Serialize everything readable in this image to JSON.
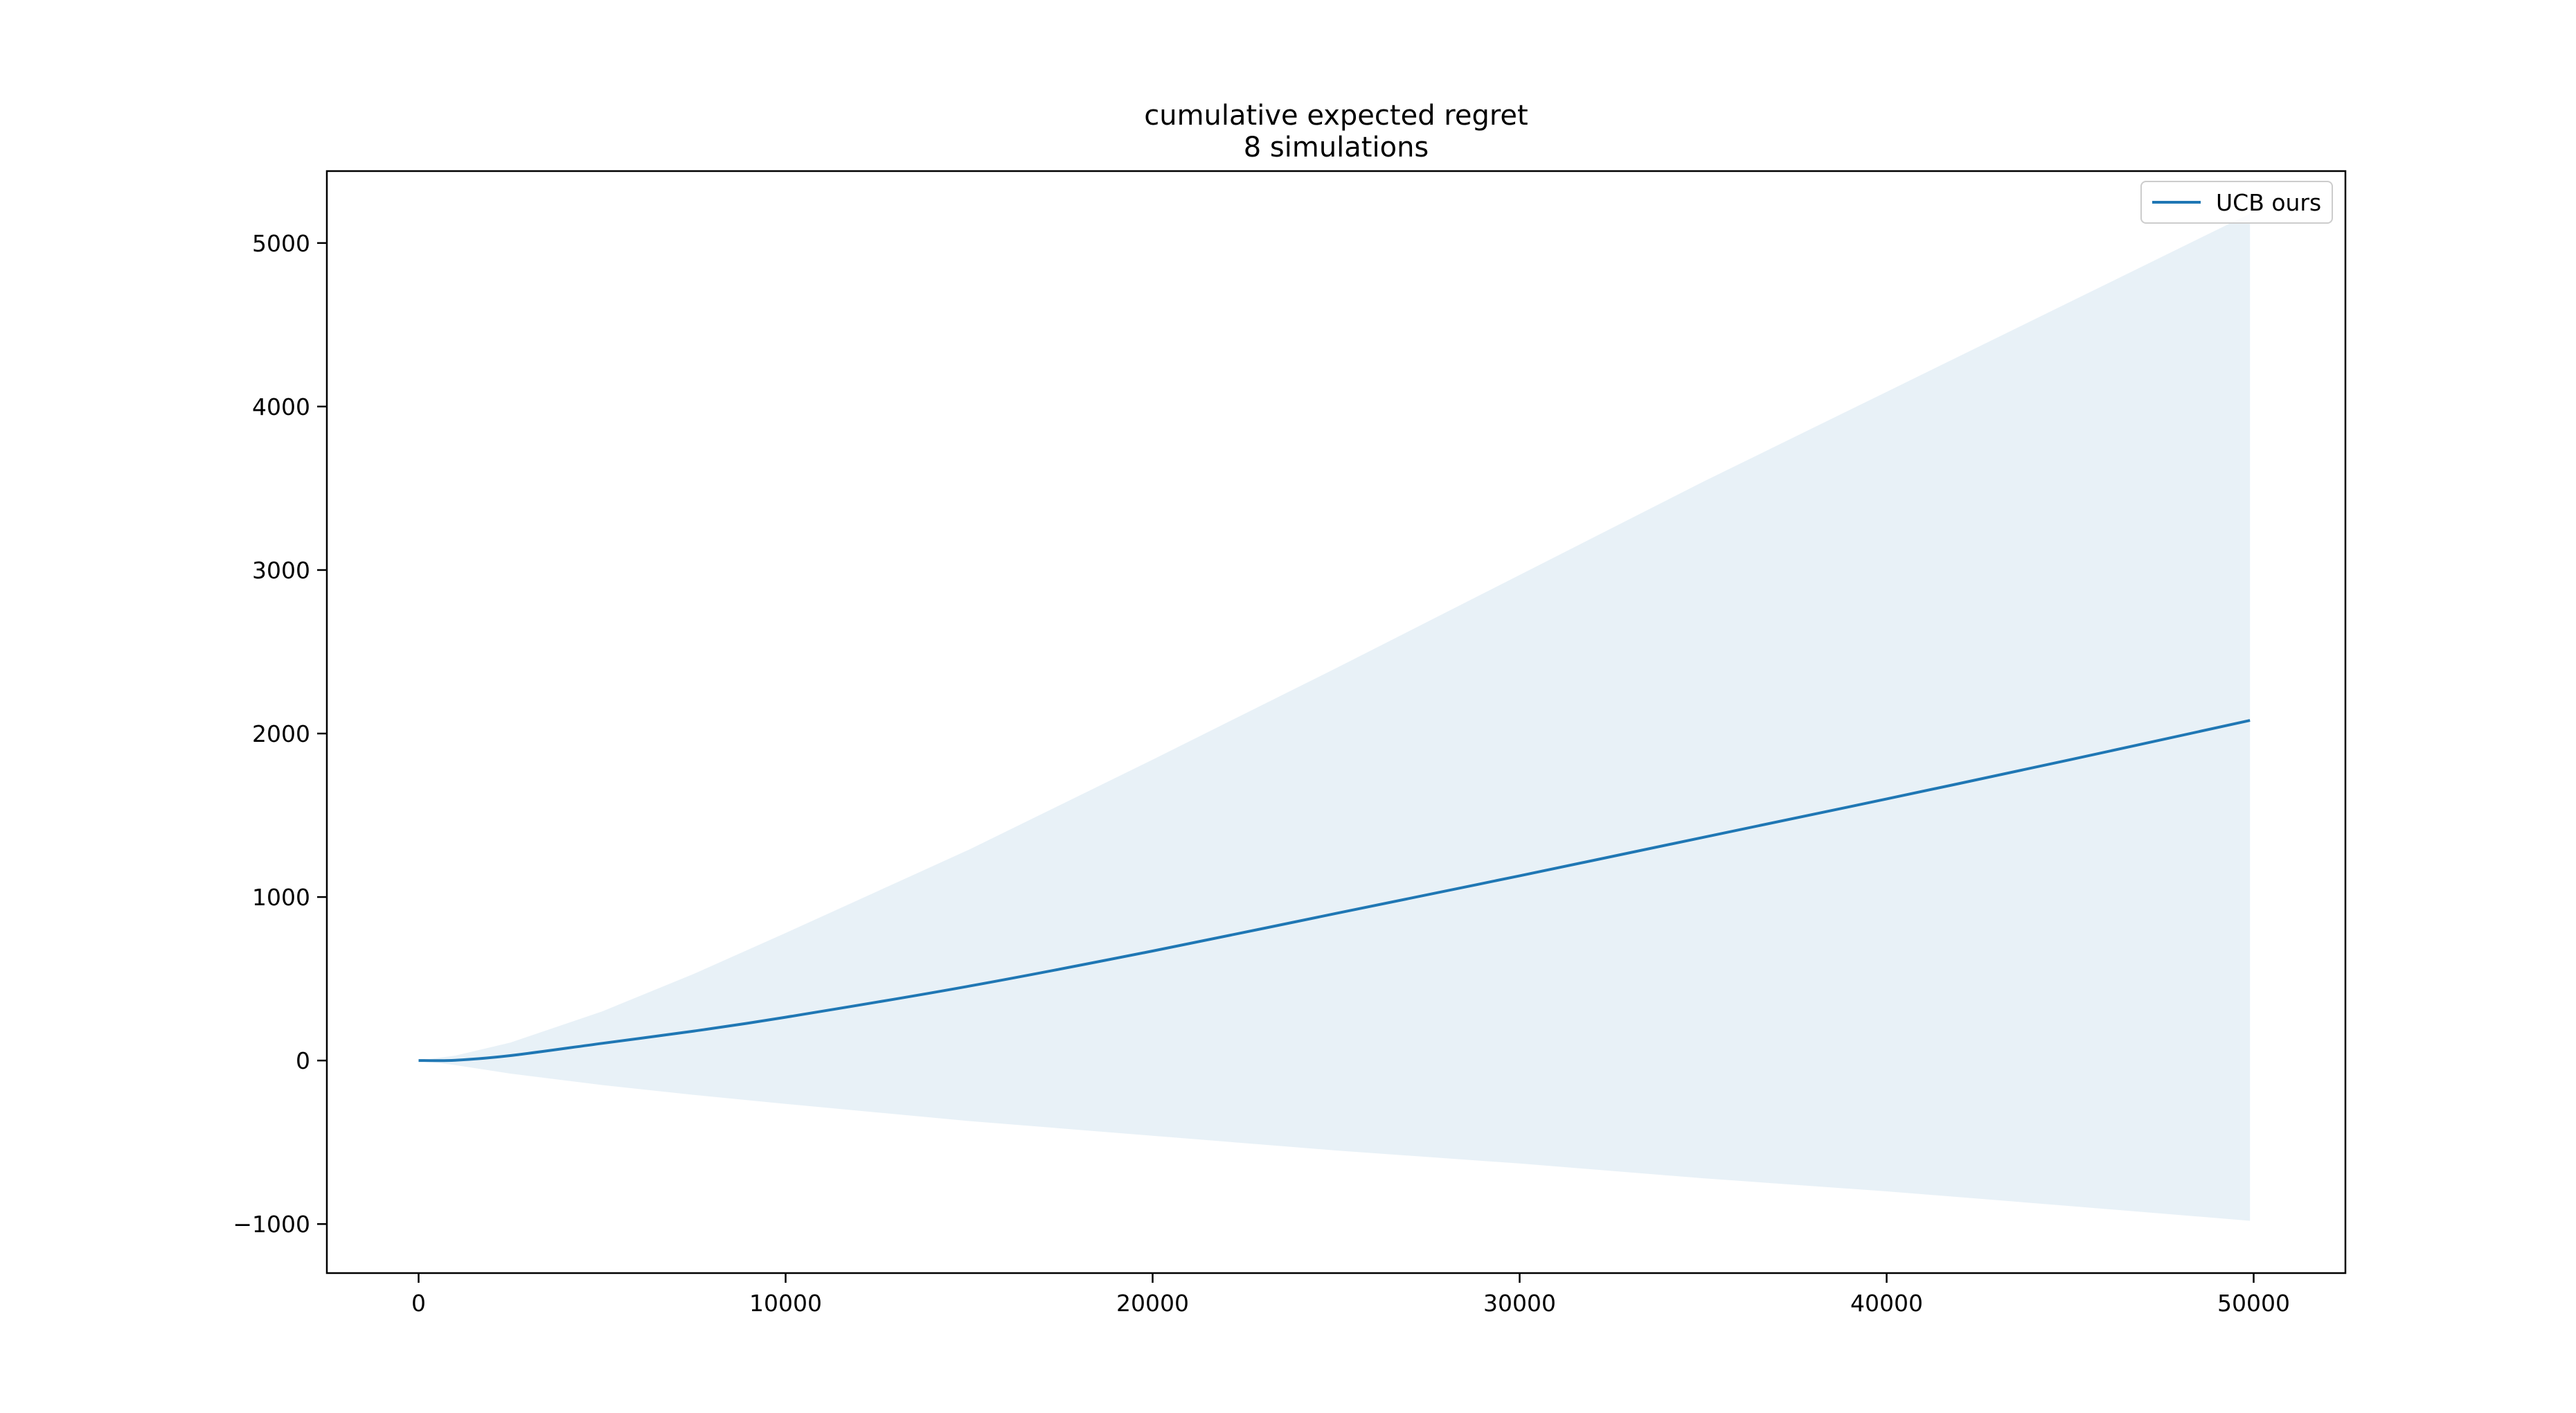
{
  "chart_data": {
    "type": "line",
    "title": "cumulative expected regret",
    "subtitle": "8 simulations",
    "xlabel": "",
    "ylabel": "",
    "xlim": [
      -2500,
      52500
    ],
    "ylim": [
      -1300,
      5440
    ],
    "xticks": [
      0,
      10000,
      20000,
      30000,
      40000,
      50000
    ],
    "yticks": [
      -1000,
      0,
      1000,
      2000,
      3000,
      4000,
      5000
    ],
    "ytick_labels": [
      "−1000",
      "0",
      "1000",
      "2000",
      "3000",
      "4000",
      "5000"
    ],
    "grid": false,
    "legend_position": "top-right",
    "series": [
      {
        "name": "UCB ours",
        "color": "#1f77b4",
        "band_color": "#1f77b4",
        "band_opacity": 0.1,
        "x": [
          0,
          1000,
          2500,
          5000,
          7500,
          10000,
          15000,
          20000,
          25000,
          30000,
          35000,
          40000,
          45000,
          49900
        ],
        "y": [
          0,
          2,
          30,
          105,
          180,
          265,
          455,
          670,
          900,
          1130,
          1365,
          1600,
          1840,
          2080
        ],
        "upper": [
          0,
          30,
          110,
          300,
          530,
          780,
          1290,
          1840,
          2400,
          2970,
          3540,
          4090,
          4640,
          5180
        ],
        "lower": [
          0,
          -28,
          -80,
          -150,
          -210,
          -265,
          -370,
          -460,
          -550,
          -630,
          -720,
          -800,
          -890,
          -980
        ]
      }
    ]
  }
}
